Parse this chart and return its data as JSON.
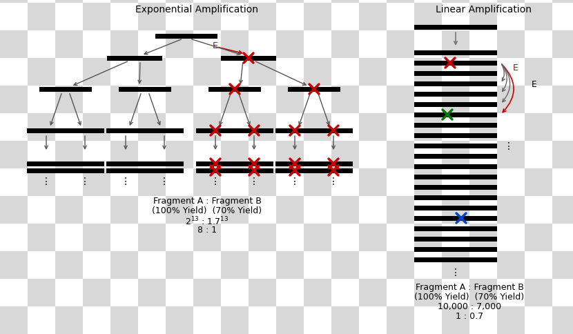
{
  "title_exp": "Exponential Amplification",
  "title_lin": "Linear Amplification",
  "bg_checker_light": "#d8d8d8",
  "bg_checker_dark": "#ffffff",
  "bar_color": "#000000",
  "arrow_color": "#555555",
  "red_x_color": "#cc0000",
  "green_x_color": "#007700",
  "blue_x_color": "#0044cc",
  "red_label_color": "#cc0000",
  "exp_text_line1": "Fragment A : Fragment B",
  "exp_text_line2": "(100% Yield)  (70% Yield)",
  "exp_text_line3": "2$^{13}$ : 1.7$^{13}$",
  "exp_text_line4": "8 : 1",
  "lin_text_line1": "Fragment A : Fragment B",
  "lin_text_line2": "(100% Yield)  (70% Yield)",
  "lin_text_line3": "10,000 : 7,000",
  "lin_text_line4": "1 : 0.7"
}
